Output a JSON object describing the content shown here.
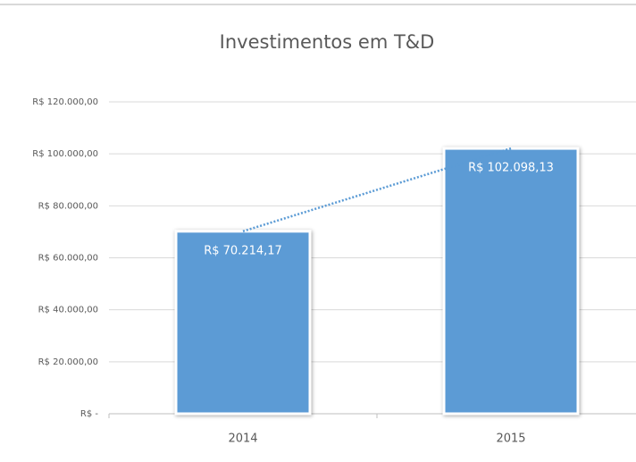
{
  "chart_data": {
    "type": "bar",
    "title": "Investimentos em T&D",
    "categories": [
      "2014",
      "2015"
    ],
    "values": [
      70214.17,
      102098.13
    ],
    "value_labels": [
      "R$ 70.214,17",
      "R$ 102.098,13"
    ],
    "color": "#5b9bd5",
    "trendline": true,
    "ylim": [
      0,
      120000
    ],
    "yticks": [
      {
        "value": 0,
        "label": "R$ -"
      },
      {
        "value": 20000,
        "label": "R$ 20.000,00"
      },
      {
        "value": 40000,
        "label": "R$ 40.000,00"
      },
      {
        "value": 60000,
        "label": "R$ 60.000,00"
      },
      {
        "value": 80000,
        "label": "R$ 80.000,00"
      },
      {
        "value": 100000,
        "label": "R$ 100.000,00"
      },
      {
        "value": 120000,
        "label": "R$ 120.000,00"
      }
    ],
    "grid": true
  }
}
